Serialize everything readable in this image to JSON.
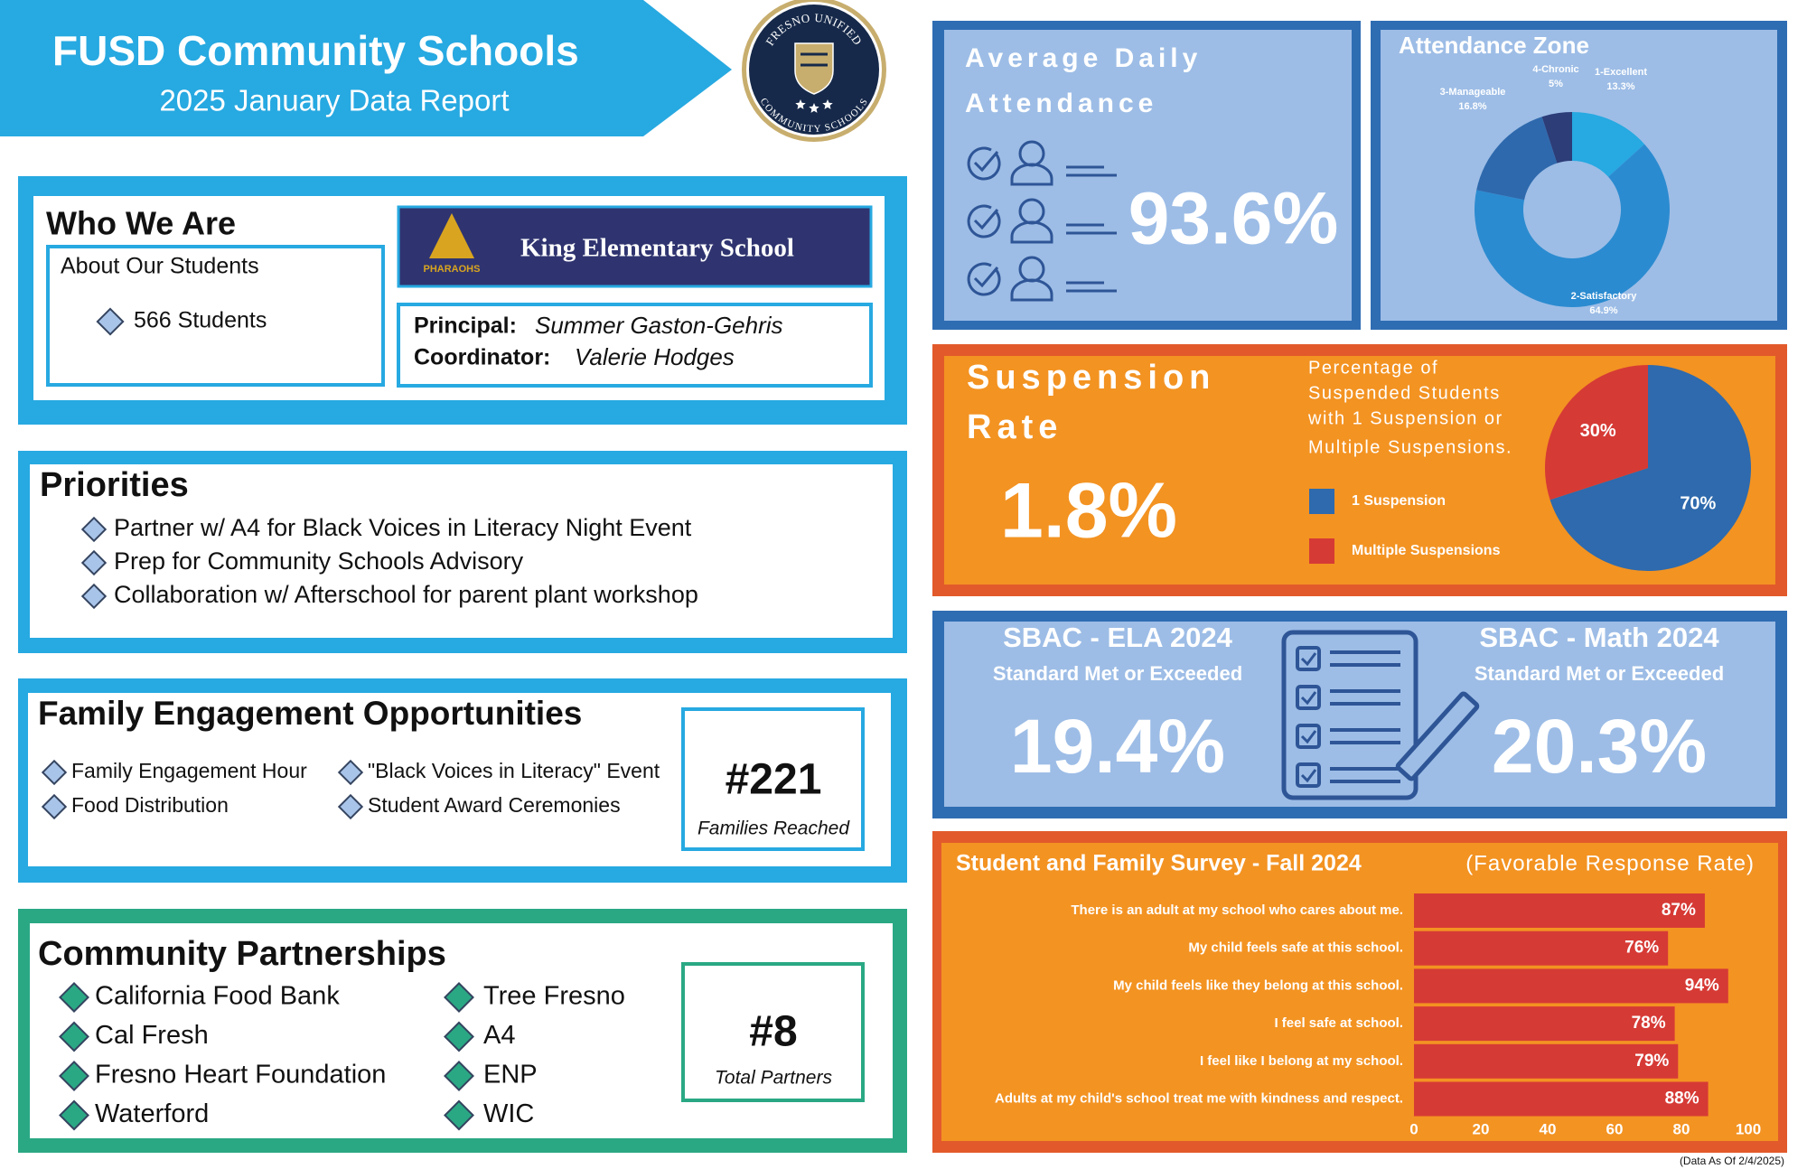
{
  "header": {
    "title": "FUSD Community Schools",
    "subtitle": "2025 January Data Report"
  },
  "logo": {
    "top": "FRESNO UNIFIED",
    "bottom": "COMMUNITY SCHOOLS"
  },
  "who_we_are": {
    "title": "Who We Are",
    "about_title": "About Our Students",
    "students": "566 Students",
    "school_name": "King Elementary School",
    "school_mascot": "PHARAOHS",
    "principal_label": "Principal:",
    "principal": "Summer Gaston-Gehris",
    "coordinator_label": "Coordinator:",
    "coordinator": "Valerie Hodges"
  },
  "priorities": {
    "title": "Priorities",
    "items": [
      "Partner w/ A4 for Black Voices in Literacy Night Event",
      "Prep for Community Schools Advisory",
      "Collaboration w/ Afterschool for parent plant workshop"
    ]
  },
  "family_engagement": {
    "title": "Family Engagement Opportunities",
    "items": [
      "Family Engagement Hour",
      "\"Black Voices in Literacy\" Event",
      "Food Distribution",
      "Student Award Ceremonies"
    ],
    "count": "#221",
    "count_label": "Families Reached"
  },
  "partnerships": {
    "title": "Community Partnerships",
    "items": [
      "California Food Bank",
      "Cal Fresh",
      "Fresno Heart Foundation",
      "Waterford",
      "Tree Fresno",
      "A4",
      "ENP",
      "WIC"
    ],
    "count": "#8",
    "count_label": "Total Partners"
  },
  "attendance": {
    "title_lines": [
      "Average Daily",
      "Attendance"
    ],
    "value": "93.6%"
  },
  "suspension": {
    "title_lines": [
      "Suspension",
      "Rate"
    ],
    "value": "1.8%"
  },
  "sbac": {
    "ela": {
      "title": "SBAC - ELA 2024",
      "subtitle": "Standard Met or Exceeded",
      "value": "19.4%"
    },
    "math": {
      "title": "SBAC - Math 2024",
      "subtitle": "Standard Met or Exceeded",
      "value": "20.3%"
    }
  },
  "chart_data": [
    {
      "type": "donut",
      "title": "Attendance Zone",
      "categories": [
        "1-Excellent",
        "2-Satisfactory",
        "3-Manageable",
        "4-Chronic"
      ],
      "values": [
        13.3,
        64.9,
        16.8,
        5
      ],
      "value_labels": [
        "13.3%",
        "64.9%",
        "16.8%",
        "5%"
      ],
      "colors": [
        "#27a9e1",
        "#2b8bd0",
        "#2e69ad",
        "#2c3d78"
      ]
    },
    {
      "type": "pie",
      "subtitle_lines": [
        "Percentage of",
        "Suspended Students",
        "with 1 Suspension or",
        "Multiple Suspensions."
      ],
      "categories": [
        "1 Suspension",
        "Multiple Suspensions"
      ],
      "values": [
        70,
        30
      ],
      "value_labels": [
        "70%",
        "30%"
      ],
      "colors": [
        "#2e6aad",
        "#d63a35"
      ]
    },
    {
      "type": "bar",
      "orientation": "horizontal",
      "title": "Student and Family Survey - Fall 2024",
      "subtitle": "(Favorable Response Rate)",
      "categories": [
        "There is an adult at my school who cares about me.",
        "My child feels safe at this school.",
        "My child feels like they belong at this school.",
        "I feel safe at school.",
        "I feel like I belong at my school.",
        "Adults at my child's school treat me with kindness and respect."
      ],
      "values": [
        87,
        76,
        94,
        78,
        79,
        88
      ],
      "value_labels": [
        "87%",
        "76%",
        "94%",
        "78%",
        "79%",
        "88%"
      ],
      "color": "#d63a35",
      "xlim": [
        0,
        100
      ],
      "xticks": [
        0,
        20,
        40,
        60,
        80,
        100
      ]
    }
  ],
  "footnote": "(Data As Of 2/4/2025)"
}
